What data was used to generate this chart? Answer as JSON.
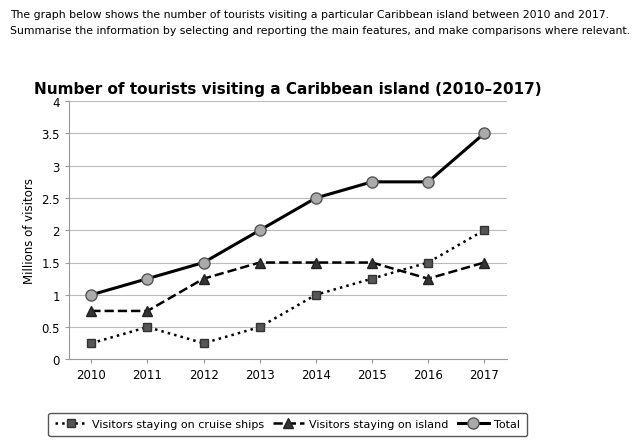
{
  "title": "Number of tourists visiting a Caribbean island (2010–2017)",
  "subtitle_line1": "The graph below shows the number of tourists visiting a particular Caribbean island between 2010 and 2017.",
  "subtitle_line2": "Summarise the information by selecting and reporting the main features, and make comparisons where relevant.",
  "ylabel": "Millions of visitors",
  "years": [
    2010,
    2011,
    2012,
    2013,
    2014,
    2015,
    2016,
    2017
  ],
  "cruise_ships": [
    0.25,
    0.5,
    0.25,
    0.5,
    1.0,
    1.25,
    1.5,
    2.0
  ],
  "on_island": [
    0.75,
    0.75,
    1.25,
    1.5,
    1.5,
    1.5,
    1.25,
    1.5
  ],
  "total": [
    1.0,
    1.25,
    1.5,
    2.0,
    2.5,
    2.75,
    2.75,
    3.5
  ],
  "ylim": [
    0,
    4
  ],
  "yticks": [
    0,
    0.5,
    1.0,
    1.5,
    2.0,
    2.5,
    3.0,
    3.5,
    4.0
  ],
  "ytick_labels": [
    "0",
    "0.5",
    "1",
    "1.5",
    "2",
    "2.5",
    "3",
    "3.5",
    "4"
  ],
  "background_color": "#ffffff",
  "grid_color": "#bbbbbb",
  "subtitle1_fontsize": 7.8,
  "subtitle2_fontsize": 7.8,
  "title_fontsize": 11,
  "axis_fontsize": 8.5,
  "ylabel_fontsize": 8.5,
  "legend_fontsize": 8
}
